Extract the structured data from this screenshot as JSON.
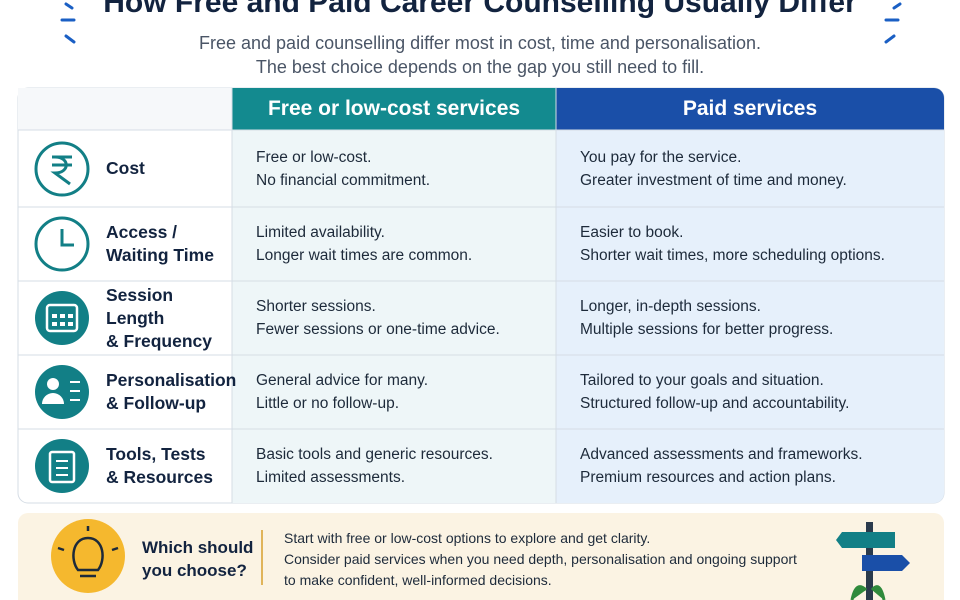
{
  "header": {
    "title": "How Free and Paid Career Counselling Usually Differ",
    "subtitle_lines": [
      "Free and paid counselling differ most in cost, time and personalisation.",
      "The best choice depends on the gap you still need to fill."
    ]
  },
  "table": {
    "columns": [
      "Free or low-cost services",
      "Paid services"
    ],
    "rows": [
      {
        "label_lines": [
          "Cost"
        ],
        "free": [
          "Free or low-cost.",
          "No financial commitment."
        ],
        "paid": [
          "You pay for the service.",
          "Greater investment of time and money."
        ]
      },
      {
        "label_lines": [
          "Access /",
          "Waiting Time"
        ],
        "free": [
          "Limited availability.",
          "Longer wait times are common."
        ],
        "paid": [
          "Easier to book.",
          "Shorter wait times, more scheduling options."
        ]
      },
      {
        "label_lines": [
          "Session Length",
          "& Frequency"
        ],
        "free": [
          "Shorter sessions.",
          "Fewer sessions or one-time advice."
        ],
        "paid": [
          "Longer, in-depth sessions.",
          "Multiple sessions for better progress."
        ]
      },
      {
        "label_lines": [
          "Personalisation",
          "& Follow-up"
        ],
        "free": [
          "General advice for many.",
          "Little or no follow-up."
        ],
        "paid": [
          "Tailored to your goals and situation.",
          "Structured follow-up and accountability."
        ]
      },
      {
        "label_lines": [
          "Tools, Tests",
          "& Resources"
        ],
        "free": [
          "Basic tools and generic resources.",
          "Limited assessments."
        ],
        "paid": [
          "Advanced assessments and frameworks.",
          "Premium resources and action plans."
        ]
      }
    ]
  },
  "footer": {
    "heading_lines": [
      "Which should",
      "you choose?"
    ],
    "text_lines": [
      "Start with free or low-cost options to explore and get clarity.",
      "Consider paid services when you need depth, personalisation and ongoing support",
      "to make confident, well-informed decisions."
    ]
  }
}
